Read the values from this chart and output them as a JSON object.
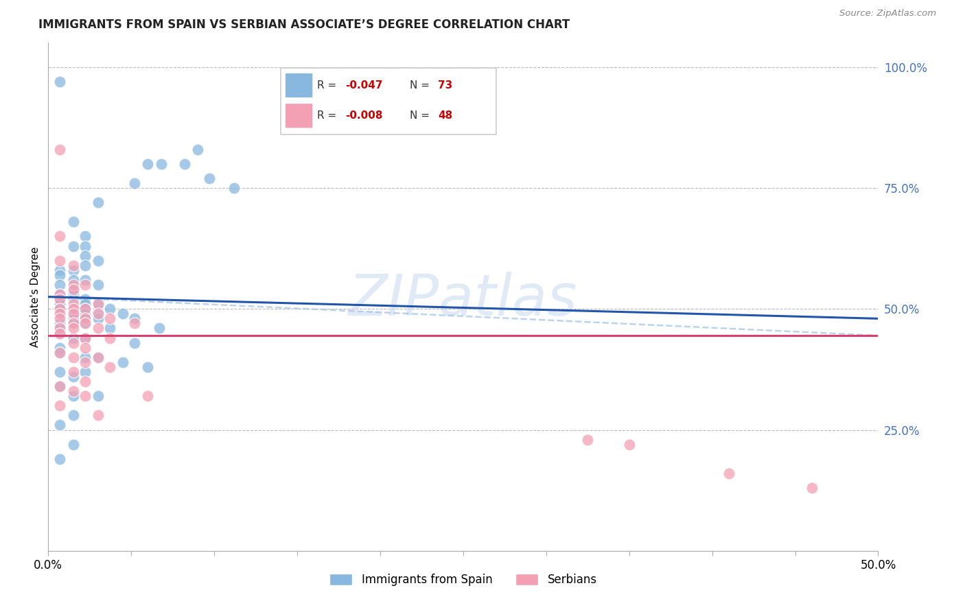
{
  "title": "IMMIGRANTS FROM SPAIN VS SERBIAN ASSOCIATE’S DEGREE CORRELATION CHART",
  "source": "Source: ZipAtlas.com",
  "ylabel": "Associate's Degree",
  "right_ytick_vals": [
    1.0,
    0.75,
    0.5,
    0.25
  ],
  "right_ytick_labels": [
    "100.0%",
    "75.0%",
    "50.0%",
    "25.0%"
  ],
  "legend_blue_r": "-0.047",
  "legend_blue_n": "73",
  "legend_pink_r": "-0.008",
  "legend_pink_n": "48",
  "blue_color": "#88b8e0",
  "pink_color": "#f4a0b4",
  "blue_line_color": "#2255aa",
  "pink_line_color": "#d94070",
  "watermark": "ZIPatlas",
  "blue_scatter_x": [
    0.007,
    0.09,
    0.06,
    0.068,
    0.082,
    0.097,
    0.052,
    0.112,
    0.03,
    0.015,
    0.022,
    0.022,
    0.015,
    0.022,
    0.03,
    0.022,
    0.015,
    0.007,
    0.007,
    0.022,
    0.015,
    0.007,
    0.03,
    0.015,
    0.007,
    0.015,
    0.007,
    0.022,
    0.007,
    0.015,
    0.007,
    0.022,
    0.007,
    0.03,
    0.007,
    0.015,
    0.022,
    0.037,
    0.03,
    0.015,
    0.007,
    0.022,
    0.045,
    0.015,
    0.022,
    0.03,
    0.052,
    0.007,
    0.015,
    0.022,
    0.037,
    0.007,
    0.067,
    0.007,
    0.015,
    0.022,
    0.052,
    0.007,
    0.007,
    0.022,
    0.03,
    0.045,
    0.06,
    0.022,
    0.007,
    0.015,
    0.007,
    0.03,
    0.015,
    0.015,
    0.007,
    0.015,
    0.007
  ],
  "blue_scatter_y": [
    0.97,
    0.83,
    0.8,
    0.8,
    0.8,
    0.77,
    0.76,
    0.75,
    0.72,
    0.68,
    0.65,
    0.63,
    0.63,
    0.61,
    0.6,
    0.59,
    0.58,
    0.58,
    0.57,
    0.56,
    0.56,
    0.55,
    0.55,
    0.54,
    0.53,
    0.53,
    0.52,
    0.52,
    0.52,
    0.52,
    0.51,
    0.51,
    0.51,
    0.51,
    0.5,
    0.5,
    0.5,
    0.5,
    0.49,
    0.49,
    0.49,
    0.49,
    0.49,
    0.48,
    0.48,
    0.48,
    0.48,
    0.47,
    0.47,
    0.47,
    0.46,
    0.46,
    0.46,
    0.45,
    0.44,
    0.44,
    0.43,
    0.42,
    0.41,
    0.4,
    0.4,
    0.39,
    0.38,
    0.37,
    0.37,
    0.36,
    0.34,
    0.32,
    0.32,
    0.28,
    0.26,
    0.22,
    0.19
  ],
  "pink_scatter_x": [
    0.007,
    0.007,
    0.007,
    0.015,
    0.015,
    0.022,
    0.015,
    0.007,
    0.007,
    0.015,
    0.03,
    0.007,
    0.015,
    0.022,
    0.007,
    0.03,
    0.015,
    0.022,
    0.007,
    0.037,
    0.015,
    0.022,
    0.052,
    0.007,
    0.015,
    0.03,
    0.007,
    0.022,
    0.037,
    0.015,
    0.022,
    0.007,
    0.015,
    0.03,
    0.022,
    0.037,
    0.015,
    0.022,
    0.007,
    0.015,
    0.022,
    0.06,
    0.007,
    0.03,
    0.325,
    0.35,
    0.41,
    0.46
  ],
  "pink_scatter_y": [
    0.83,
    0.65,
    0.6,
    0.59,
    0.55,
    0.55,
    0.54,
    0.53,
    0.52,
    0.51,
    0.51,
    0.5,
    0.5,
    0.5,
    0.49,
    0.49,
    0.49,
    0.48,
    0.48,
    0.48,
    0.47,
    0.47,
    0.47,
    0.46,
    0.46,
    0.46,
    0.45,
    0.44,
    0.44,
    0.43,
    0.42,
    0.41,
    0.4,
    0.4,
    0.39,
    0.38,
    0.37,
    0.35,
    0.34,
    0.33,
    0.32,
    0.32,
    0.3,
    0.28,
    0.23,
    0.22,
    0.16,
    0.13
  ],
  "xlim": [
    0.0,
    0.5
  ],
  "ylim": [
    0.0,
    1.05
  ],
  "xaxis_left_label": "0.0%",
  "xaxis_right_label": "50.0%",
  "num_xticks": 10,
  "blue_trend_x0": 0.0,
  "blue_trend_y0": 0.525,
  "blue_trend_x1": 0.5,
  "blue_trend_y1": 0.48,
  "pink_trend_y": 0.445
}
